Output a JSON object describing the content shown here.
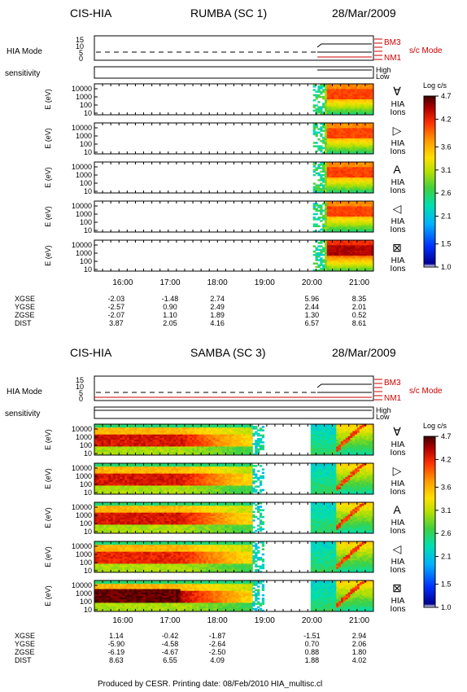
{
  "colors": {
    "mode_red": "#cc0000",
    "colorbar": [
      "#ffffff",
      "#0000aa",
      "#0055ff",
      "#00c8ff",
      "#00e0a0",
      "#40d040",
      "#c8e000",
      "#ffe000",
      "#ff9900",
      "#ff3300",
      "#c00000",
      "#500000"
    ]
  },
  "footer": "Produced by CESR.   Printing date: 08/Feb/2010   HIA_multisc.cl",
  "chart_data": [
    {
      "type": "heatmap",
      "instrument": "CIS-HIA",
      "spacecraft": "RUMBA (SC 1)",
      "date": "28/Mar/2009",
      "mode_panel": {
        "label": "HIA Mode",
        "ticks": [
          "15",
          "10",
          "5",
          "0"
        ],
        "side_labels": [
          "BM3",
          "NM1"
        ],
        "side_title": "s/c Mode"
      },
      "sensitivity_panel": {
        "label": "sensitivity",
        "levels": [
          "High",
          "Low"
        ]
      },
      "energy_axis": {
        "label": "E (eV)",
        "ticks": [
          "10000",
          "1000",
          "100",
          "10"
        ],
        "scale": "log"
      },
      "colorbar": {
        "title": "Log c/s",
        "ticks": [
          "4.7",
          "4.2",
          "3.6",
          "3.1",
          "2.6",
          "2.1",
          "1.5",
          "1.0"
        ],
        "range": [
          1.0,
          4.7
        ]
      },
      "panels": [
        {
          "symbol": "∀",
          "label": "HIA Ions",
          "data_start_h": 20.02,
          "peak": 4.2
        },
        {
          "symbol": "▷",
          "label": "HIA Ions",
          "data_start_h": 20.02,
          "peak": 4.2
        },
        {
          "symbol": "A",
          "label": "HIA Ions",
          "data_start_h": 20.02,
          "peak": 4.2
        },
        {
          "symbol": "◁",
          "label": "HIA Ions",
          "data_start_h": 20.02,
          "peak": 4.2
        },
        {
          "symbol": "⊠",
          "label": "HIA Ions",
          "data_start_h": 20.02,
          "peak": 4.6
        }
      ],
      "time_axis": {
        "range_h": [
          15.4,
          21.3
        ],
        "ticks": [
          "16:00",
          "17:00",
          "18:00",
          "19:00",
          "20:00",
          "21:00"
        ]
      },
      "ephemeris": {
        "rows": [
          "XGSE",
          "YGSE",
          "ZGSE",
          "DIST"
        ],
        "values": [
          [
            "-2.03",
            "-1.48",
            "2.74",
            "5.96",
            "8.35"
          ],
          [
            "-2.57",
            "0.90",
            "2.49",
            "2.44",
            "2.01"
          ],
          [
            "-2.07",
            "1.10",
            "1.89",
            "1.30",
            "0.52"
          ],
          [
            "3.87",
            "2.05",
            "4.16",
            "6.57",
            "8.61"
          ]
        ]
      }
    },
    {
      "type": "heatmap",
      "instrument": "CIS-HIA",
      "spacecraft": "SAMBA (SC 3)",
      "date": "28/Mar/2009",
      "mode_panel": {
        "label": "HIA Mode",
        "ticks": [
          "15",
          "10",
          "5",
          "0"
        ],
        "side_labels": [
          "BM3",
          "NM1"
        ],
        "side_title": "s/c Mode"
      },
      "sensitivity_panel": {
        "label": "sensitivity",
        "levels": [
          "High",
          "Low"
        ]
      },
      "energy_axis": {
        "label": "E (eV)",
        "ticks": [
          "10000",
          "1000",
          "100",
          "10"
        ],
        "scale": "log"
      },
      "colorbar": {
        "title": "Log c/s",
        "ticks": [
          "4.7",
          "4.2",
          "3.6",
          "3.1",
          "2.6",
          "2.1",
          "1.5",
          "1.0"
        ],
        "range": [
          1.0,
          4.7
        ]
      },
      "panels": [
        {
          "symbol": "∀",
          "label": "HIA Ions",
          "peak": 4.4
        },
        {
          "symbol": "▷",
          "label": "HIA Ions",
          "peak": 4.4
        },
        {
          "symbol": "A",
          "label": "HIA Ions",
          "peak": 4.4
        },
        {
          "symbol": "◁",
          "label": "HIA Ions",
          "peak": 4.2
        },
        {
          "symbol": "⊠",
          "label": "HIA Ions",
          "peak": 4.7
        }
      ],
      "time_axis": {
        "range_h": [
          15.4,
          21.3
        ],
        "ticks": [
          "16:00",
          "17:00",
          "18:00",
          "19:00",
          "20:00",
          "21:00"
        ]
      },
      "ephemeris": {
        "rows": [
          "XGSE",
          "YGSE",
          "ZGSE",
          "DIST"
        ],
        "values": [
          [
            "1.14",
            "-0.42",
            "-1.87",
            "-1.51",
            "2.94"
          ],
          [
            "-5.90",
            "-4.58",
            "-2.64",
            "0.70",
            "2.06"
          ],
          [
            "-6.19",
            "-4.67",
            "-2.50",
            "0.88",
            "1.80"
          ],
          [
            "8.63",
            "6.55",
            "4.09",
            "1.88",
            "4.02"
          ]
        ]
      }
    }
  ]
}
